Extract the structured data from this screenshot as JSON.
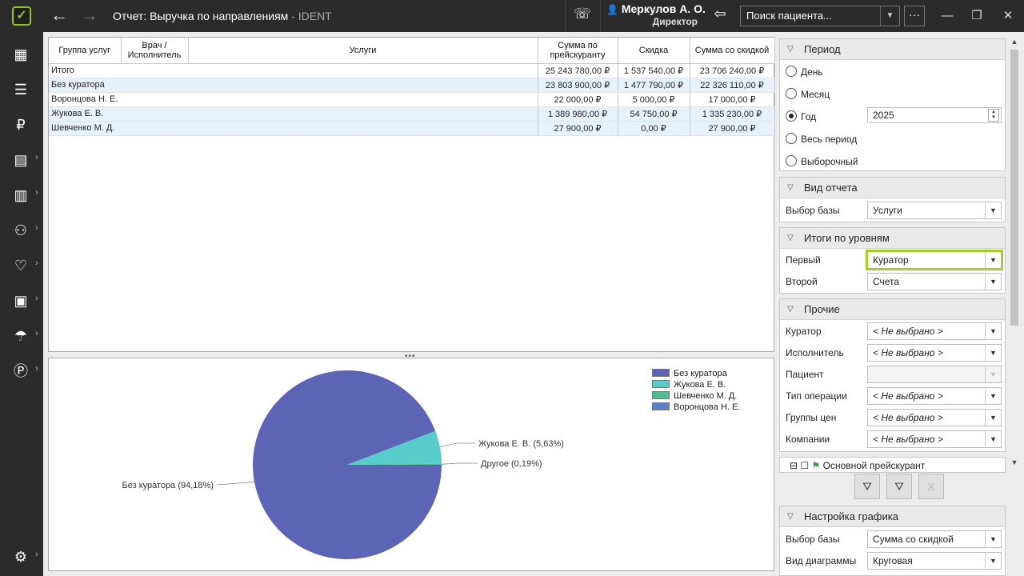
{
  "window": {
    "title": "Отчет: Выручка по направлениям",
    "app_name": " - IDENT",
    "user_name": "Меркулов А. О.",
    "user_role": "Директор",
    "search_placeholder": "Поиск пациента..."
  },
  "grid": {
    "headers": [
      "Группа услуг",
      "Врач / Исполнитель",
      "Услуги",
      "Сумма по прейскуранту",
      "Скидка",
      "Сумма со скидкой"
    ],
    "rows": [
      {
        "name": "Итого",
        "sum": "25 243 780,00 ₽",
        "discount": "1 537 540,00 ₽",
        "total": "23 706 240,00 ₽"
      },
      {
        "name": "Без куратора",
        "sum": "23 803 900,00 ₽",
        "discount": "1 477 790,00 ₽",
        "total": "22 326 110,00 ₽"
      },
      {
        "name": "Воронцова Н. Е.",
        "sum": "22 000,00 ₽",
        "discount": "5 000,00 ₽",
        "total": "17 000,00 ₽"
      },
      {
        "name": "Жукова Е. В.",
        "sum": "1 389 980,00 ₽",
        "discount": "54 750,00 ₽",
        "total": "1 335 230,00 ₽"
      },
      {
        "name": "Шевченко М. Д.",
        "sum": "27 900,00 ₽",
        "discount": "0,00 ₽",
        "total": "27 900,00 ₽"
      }
    ]
  },
  "chart_data": {
    "type": "pie",
    "slices": [
      {
        "name": "Без куратора",
        "value": 94.18,
        "color": "#5b64b5"
      },
      {
        "name": "Жукова Е. В.",
        "value": 5.63,
        "color": "#56cdc8"
      },
      {
        "name": "Другое",
        "value": 0.19,
        "color": "#4fc08d"
      }
    ],
    "labels": [
      "Без куратора (94,18%)",
      "Жукова Е. В. (5,63%)",
      "Другое (0,19%)"
    ],
    "legend": [
      {
        "name": "Без куратора",
        "color": "#5b64b5"
      },
      {
        "name": "Жукова Е. В.",
        "color": "#56cdc8"
      },
      {
        "name": "Шевченко М. Д.",
        "color": "#4fc08d"
      },
      {
        "name": "Воронцова Н. Е.",
        "color": "#5a82c8"
      }
    ],
    "legend_position": "top-right"
  },
  "panels": {
    "period": {
      "title": "Период",
      "options": [
        "День",
        "Месяц",
        "Год",
        "Весь период",
        "Выборочный"
      ],
      "selected": "Год",
      "year": "2025"
    },
    "report_type": {
      "title": "Вид отчета",
      "base_label": "Выбор базы",
      "base_value": "Услуги"
    },
    "levels": {
      "title": "Итоги по уровням",
      "first_label": "Первый",
      "first_value": "Куратор",
      "second_label": "Второй",
      "second_value": "Счета"
    },
    "other": {
      "title": "Прочие",
      "fields": [
        {
          "label": "Куратор",
          "value": "< Не выбрано >"
        },
        {
          "label": "Исполнитель",
          "value": "< Не выбрано >"
        },
        {
          "label": "Пациент",
          "value": ""
        },
        {
          "label": "Тип операции",
          "value": "< Не выбрано >"
        },
        {
          "label": "Группы цен",
          "value": "< Не выбрано >"
        },
        {
          "label": "Компании",
          "value": "< Не выбрано >"
        }
      ]
    },
    "tree_item": "Основной прейскурант",
    "chart_settings": {
      "title": "Настройка графика",
      "base_label": "Выбор базы",
      "base_value": "Сумма со скидкой",
      "type_label": "Вид диаграммы",
      "type_value": "Круговая"
    }
  }
}
